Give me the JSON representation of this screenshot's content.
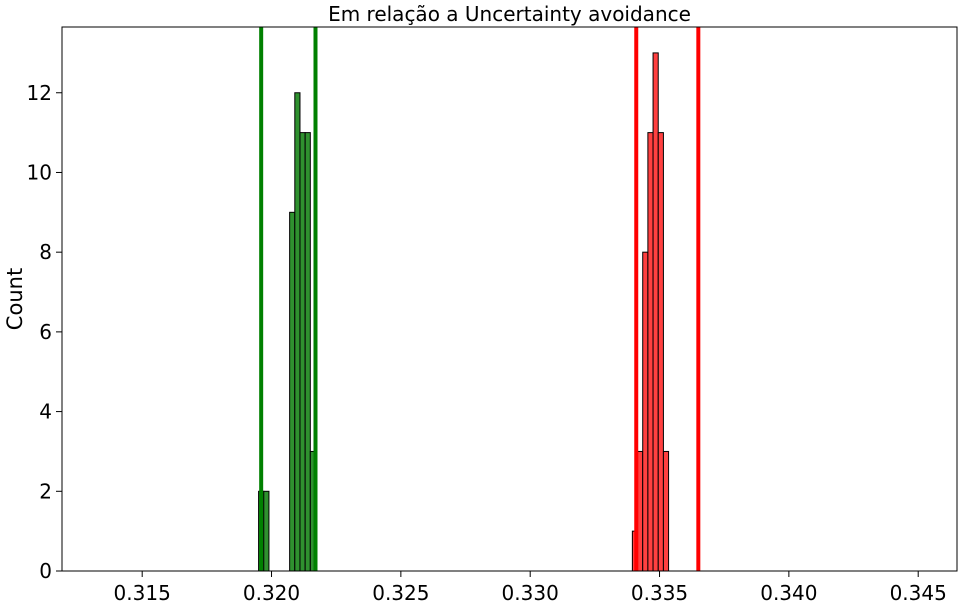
{
  "chart_data": {
    "type": "bar",
    "title": "Em relação a Uncertainty avoidance",
    "xlabel": "",
    "ylabel": "Count",
    "xlim": [
      0.3119,
      0.3465
    ],
    "ylim": [
      0,
      13.65
    ],
    "x_ticks": [
      0.315,
      0.32,
      0.325,
      0.33,
      0.335,
      0.34,
      0.345
    ],
    "x_tick_labels": [
      "0.315",
      "0.320",
      "0.325",
      "0.330",
      "0.335",
      "0.340",
      "0.345"
    ],
    "y_ticks": [
      0,
      2,
      4,
      6,
      8,
      10,
      12
    ],
    "y_tick_labels": [
      "0",
      "2",
      "4",
      "6",
      "8",
      "10",
      "12"
    ],
    "grid": false,
    "series": [
      {
        "color": "#2f912f",
        "bins": [
          {
            "x0": 0.3195,
            "x1": 0.3197,
            "count": 2
          },
          {
            "x0": 0.3197,
            "x1": 0.3199,
            "count": 2
          },
          {
            "x0": 0.3199,
            "x1": 0.3207,
            "count": 0
          },
          {
            "x0": 0.3207,
            "x1": 0.3209,
            "count": 9
          },
          {
            "x0": 0.3209,
            "x1": 0.3211,
            "count": 12
          },
          {
            "x0": 0.3211,
            "x1": 0.3213,
            "count": 11
          },
          {
            "x0": 0.3213,
            "x1": 0.3215,
            "count": 11
          },
          {
            "x0": 0.3215,
            "x1": 0.3217,
            "count": 3
          }
        ],
        "vlines": [
          0.3196,
          0.3217
        ],
        "vline_color": "#008000"
      },
      {
        "color": "#ff4040",
        "bins": [
          {
            "x0": 0.33395,
            "x1": 0.33415,
            "count": 1
          },
          {
            "x0": 0.33415,
            "x1": 0.33435,
            "count": 3
          },
          {
            "x0": 0.33435,
            "x1": 0.33455,
            "count": 8
          },
          {
            "x0": 0.33455,
            "x1": 0.33475,
            "count": 11
          },
          {
            "x0": 0.33475,
            "x1": 0.33495,
            "count": 13
          },
          {
            "x0": 0.33495,
            "x1": 0.33515,
            "count": 11
          },
          {
            "x0": 0.33515,
            "x1": 0.33535,
            "count": 3
          }
        ],
        "vlines": [
          0.3341,
          0.3365
        ],
        "vline_color": "#ff0000"
      }
    ]
  }
}
